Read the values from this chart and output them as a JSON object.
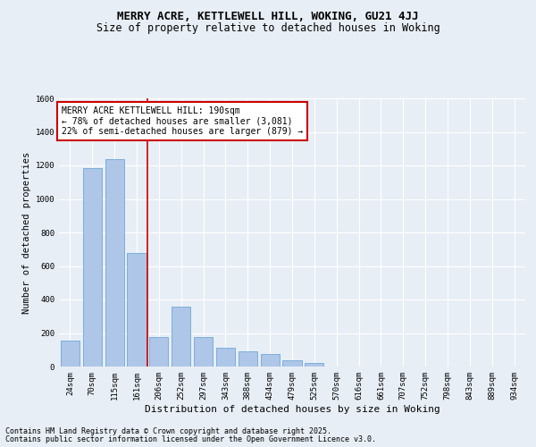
{
  "title": "MERRY ACRE, KETTLEWELL HILL, WOKING, GU21 4JJ",
  "subtitle": "Size of property relative to detached houses in Woking",
  "xlabel": "Distribution of detached houses by size in Woking",
  "ylabel": "Number of detached properties",
  "categories": [
    "24sqm",
    "70sqm",
    "115sqm",
    "161sqm",
    "206sqm",
    "252sqm",
    "297sqm",
    "343sqm",
    "388sqm",
    "434sqm",
    "479sqm",
    "525sqm",
    "570sqm",
    "616sqm",
    "661sqm",
    "707sqm",
    "752sqm",
    "798sqm",
    "843sqm",
    "889sqm",
    "934sqm"
  ],
  "values": [
    155,
    1185,
    1240,
    675,
    175,
    355,
    175,
    110,
    90,
    75,
    35,
    20,
    0,
    0,
    0,
    0,
    0,
    0,
    0,
    0,
    0
  ],
  "bar_color": "#aec6e8",
  "bar_edge_color": "#5a9fd4",
  "background_color": "#e8eef5",
  "grid_color": "#ffffff",
  "annotation_title": "MERRY ACRE KETTLEWELL HILL: 190sqm",
  "annotation_line1": "← 78% of detached houses are smaller (3,081)",
  "annotation_line2": "22% of semi-detached houses are larger (879) →",
  "annotation_box_color": "#ffffff",
  "annotation_box_edge": "#cc0000",
  "red_line_color": "#cc0000",
  "ylim": [
    0,
    1600
  ],
  "yticks": [
    0,
    200,
    400,
    600,
    800,
    1000,
    1200,
    1400,
    1600
  ],
  "footnote1": "Contains HM Land Registry data © Crown copyright and database right 2025.",
  "footnote2": "Contains public sector information licensed under the Open Government Licence v3.0.",
  "title_fontsize": 9,
  "subtitle_fontsize": 8.5,
  "ylabel_fontsize": 7.5,
  "xlabel_fontsize": 8,
  "tick_fontsize": 6.5,
  "annot_fontsize": 7,
  "footnote_fontsize": 6
}
